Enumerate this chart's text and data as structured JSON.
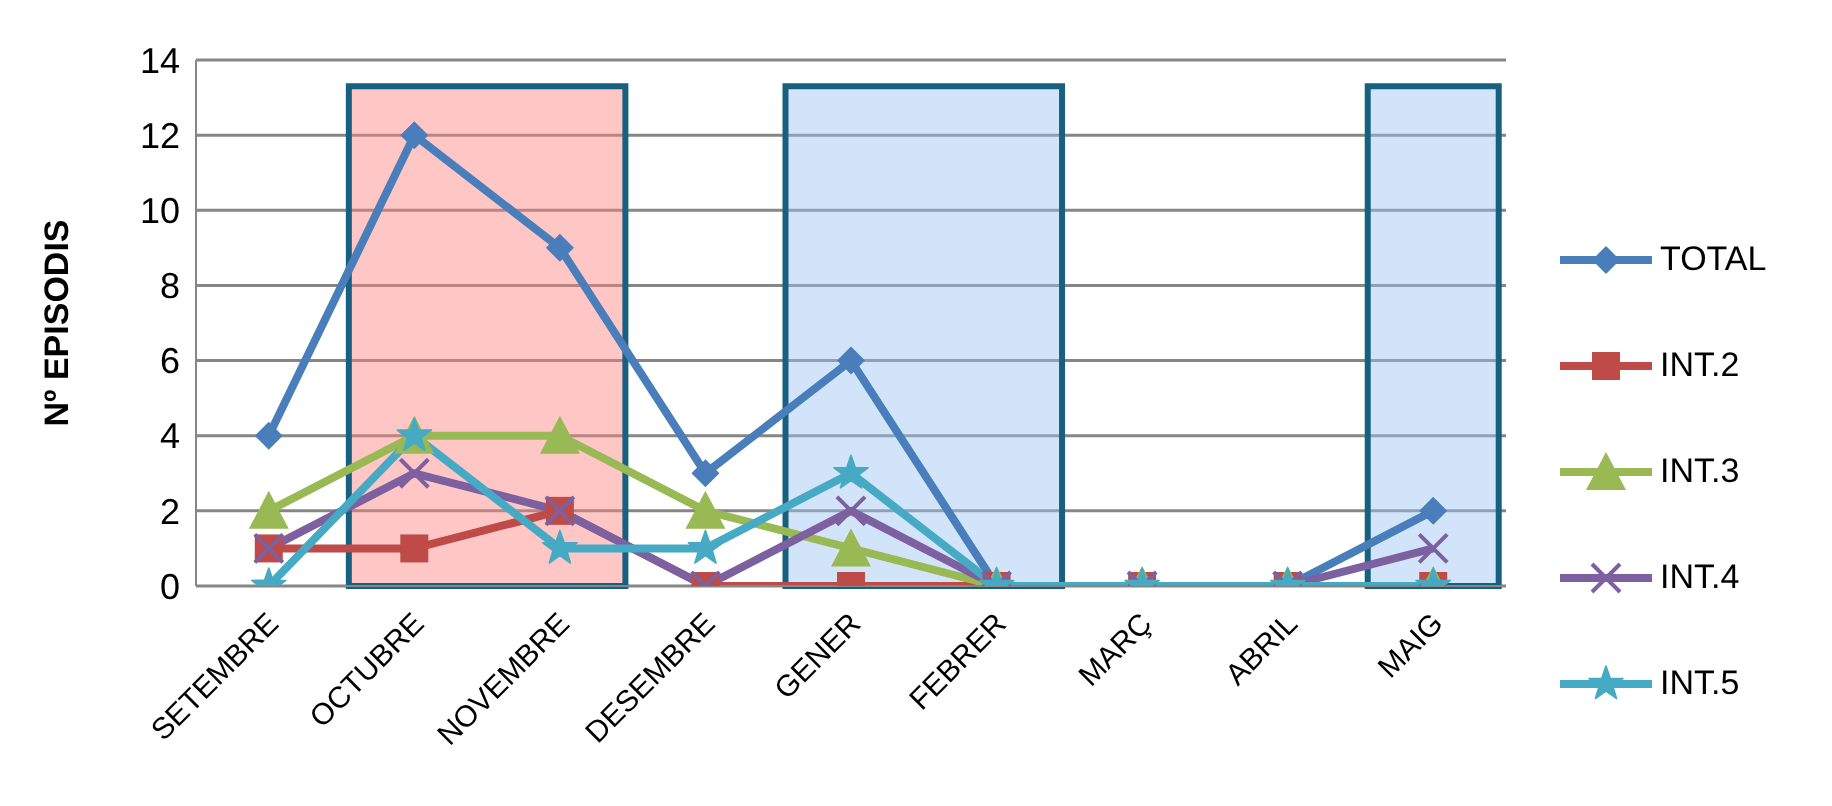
{
  "chart_data": {
    "type": "line",
    "ylabel": "Nº EPISODIS",
    "categories": [
      "SETEMBRE",
      "OCTUBRE",
      "NOVEMBRE",
      "DESEMBRE",
      "GENER",
      "FEBRER",
      "MARÇ",
      "ABRIL",
      "MAIG"
    ],
    "series": [
      {
        "name": "TOTAL",
        "color": "#4a7ebb",
        "marker": "diamond",
        "values": [
          4,
          12,
          9,
          3,
          6,
          0,
          0,
          0,
          2
        ]
      },
      {
        "name": "INT.2",
        "color": "#be4b48",
        "marker": "square",
        "values": [
          1,
          1,
          2,
          0,
          0,
          0,
          0,
          0,
          0
        ]
      },
      {
        "name": "INT.3",
        "color": "#98b954",
        "marker": "triangle",
        "values": [
          2,
          4,
          4,
          2,
          1,
          0,
          0,
          0,
          0
        ]
      },
      {
        "name": "INT.4",
        "color": "#7d60a0",
        "marker": "cross",
        "values": [
          1,
          3,
          2,
          0,
          2,
          0,
          0,
          0,
          1
        ]
      },
      {
        "name": "INT.5",
        "color": "#46aac5",
        "marker": "star",
        "values": [
          0,
          4,
          1,
          1,
          3,
          0,
          0,
          0,
          0
        ]
      }
    ],
    "bands": [
      {
        "axis": "x",
        "from": "OCTUBRE",
        "to": "NOVEMBRE",
        "color": "#ff8080"
      },
      {
        "axis": "x",
        "from": "GENER",
        "to": "FEBRER",
        "color": "#9cc3f5"
      },
      {
        "axis": "x",
        "from": "MAIG",
        "to": "MAIG",
        "color": "#9cc3f5"
      }
    ],
    "ylim": [
      0,
      14
    ],
    "yticks": [
      0,
      2,
      4,
      6,
      8,
      10,
      12,
      14
    ],
    "grid": "y",
    "legend": "right"
  }
}
